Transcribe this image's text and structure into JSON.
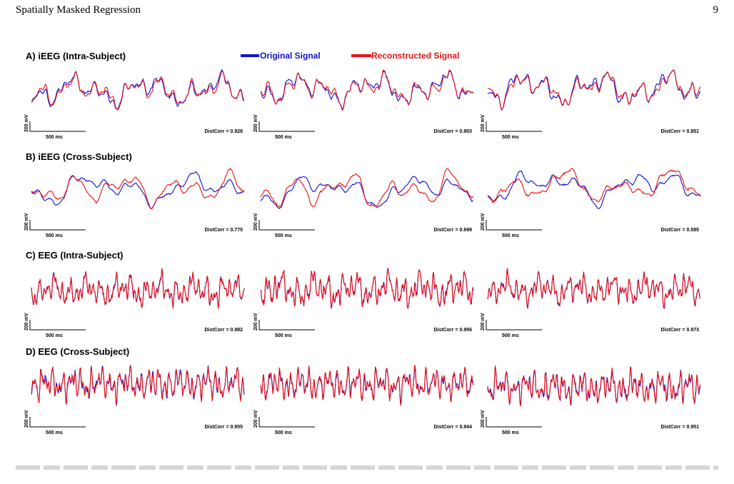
{
  "header": {
    "running_head": "Spatially Masked Regression",
    "page_number": "9"
  },
  "legend": {
    "original": {
      "label": "Original Signal",
      "color": "#1010d8"
    },
    "reconstructed": {
      "label": "Reconstructed Signal",
      "color": "#ee1111"
    }
  },
  "scale_bar": {
    "voltage_label": "200 mV",
    "time_label": "500 ms"
  },
  "panels": [
    {
      "title": "A) iEEG (Intra-Subject)",
      "kind": "ieeg-intra",
      "traces": [
        {
          "dist_corr": "DistCorr = 0.928"
        },
        {
          "dist_corr": "DistCorr = 0.903"
        },
        {
          "dist_corr": "DistCorr = 0.851"
        }
      ]
    },
    {
      "title": "B) iEEG (Cross-Subject)",
      "kind": "ieeg-cross",
      "traces": [
        {
          "dist_corr": "DistCorr = 0.775"
        },
        {
          "dist_corr": "DistCorr = 0.699"
        },
        {
          "dist_corr": "DistCorr = 0.585"
        }
      ]
    },
    {
      "title": "C) EEG (Intra-Subject)",
      "kind": "eeg-intra",
      "traces": [
        {
          "dist_corr": "DistCorr = 0.982"
        },
        {
          "dist_corr": "DistCorr = 0.956"
        },
        {
          "dist_corr": "DistCorr = 0.973"
        }
      ]
    },
    {
      "title": "D) EEG (Cross-Subject)",
      "kind": "eeg-cross",
      "traces": [
        {
          "dist_corr": "DistCorr = 0.955"
        },
        {
          "dist_corr": "DistCorr = 0.944"
        },
        {
          "dist_corr": "DistCorr = 0.951"
        }
      ]
    }
  ]
}
